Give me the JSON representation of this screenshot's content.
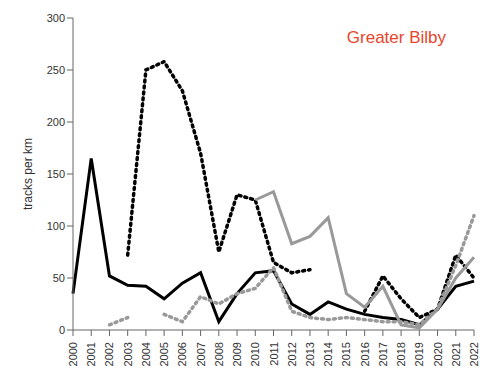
{
  "chart_data": {
    "type": "line",
    "title": "Greater Bilby",
    "y_label": "tracks per km",
    "categories": [
      "2000",
      "2001",
      "2002",
      "2003",
      "2004",
      "2005",
      "2006",
      "2007",
      "2008",
      "2009",
      "2010",
      "2011",
      "2012",
      "2013",
      "2014",
      "2015",
      "2016",
      "2017",
      "2018",
      "2019",
      "2020",
      "2021",
      "2022"
    ],
    "ylim": [
      0,
      300
    ],
    "yticks": [
      0,
      50,
      100,
      150,
      200,
      250,
      300
    ],
    "grid": false,
    "series": [
      {
        "color": "#000000",
        "line_style": "solid",
        "values": [
          35,
          165,
          52,
          43,
          42,
          30,
          45,
          55,
          8,
          35,
          55,
          57,
          25,
          15,
          27,
          20,
          15,
          12,
          10,
          5,
          20,
          42,
          47
        ]
      },
      {
        "color": "#000000",
        "line_style": "dotted",
        "values": [
          null,
          null,
          null,
          72,
          250,
          258,
          230,
          170,
          75,
          130,
          125,
          65,
          55,
          58,
          null,
          null,
          18,
          52,
          30,
          12,
          20,
          72,
          50
        ]
      },
      {
        "color": "#999999",
        "line_style": "solid",
        "values": [
          null,
          null,
          null,
          null,
          null,
          null,
          null,
          null,
          null,
          null,
          125,
          133,
          83,
          90,
          108,
          35,
          22,
          42,
          5,
          2,
          20,
          50,
          70
        ]
      },
      {
        "color": "#999999",
        "line_style": "dotted",
        "values": [
          null,
          null,
          5,
          12,
          null,
          15,
          8,
          32,
          25,
          35,
          40,
          60,
          18,
          12,
          10,
          12,
          10,
          8,
          8,
          5,
          20,
          62,
          110
        ]
      }
    ]
  }
}
